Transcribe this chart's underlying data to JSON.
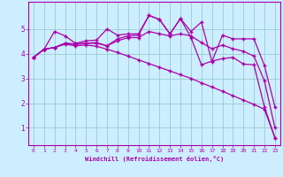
{
  "xlabel": "Windchill (Refroidissement éolien,°C)",
  "bg_color": "#cceeff",
  "line_color": "#aa00aa",
  "grid_color": "#99cccc",
  "xlim": [
    -0.5,
    23.5
  ],
  "ylim": [
    0.3,
    6.1
  ],
  "yticks": [
    1,
    2,
    3,
    4,
    5
  ],
  "xticks": [
    0,
    1,
    2,
    3,
    4,
    5,
    6,
    7,
    8,
    9,
    10,
    11,
    12,
    13,
    14,
    15,
    16,
    17,
    18,
    19,
    20,
    21,
    22,
    23
  ],
  "series1": [
    3.85,
    4.18,
    4.9,
    4.72,
    4.42,
    4.52,
    4.55,
    5.0,
    4.75,
    4.8,
    4.8,
    5.55,
    5.38,
    4.8,
    5.42,
    4.9,
    5.28,
    3.68,
    4.75,
    4.6,
    4.6,
    4.6,
    3.52,
    1.85
  ],
  "series2": [
    3.85,
    4.18,
    4.25,
    4.42,
    4.37,
    4.42,
    4.45,
    4.32,
    4.6,
    4.72,
    4.75,
    5.55,
    5.38,
    4.8,
    5.42,
    4.65,
    3.55,
    3.7,
    3.8,
    3.85,
    3.58,
    3.55,
    1.85,
    0.6
  ],
  "series3": [
    3.85,
    4.18,
    4.25,
    4.42,
    4.4,
    4.42,
    4.42,
    4.32,
    4.52,
    4.65,
    4.65,
    4.9,
    4.8,
    4.72,
    4.8,
    4.72,
    4.45,
    4.2,
    4.35,
    4.2,
    4.1,
    3.9,
    2.9,
    1.0
  ],
  "series4": [
    3.85,
    4.18,
    4.25,
    4.38,
    4.32,
    4.35,
    4.3,
    4.18,
    4.05,
    3.9,
    3.75,
    3.6,
    3.45,
    3.3,
    3.15,
    3.0,
    2.82,
    2.65,
    2.48,
    2.3,
    2.12,
    1.95,
    1.75,
    0.6
  ]
}
